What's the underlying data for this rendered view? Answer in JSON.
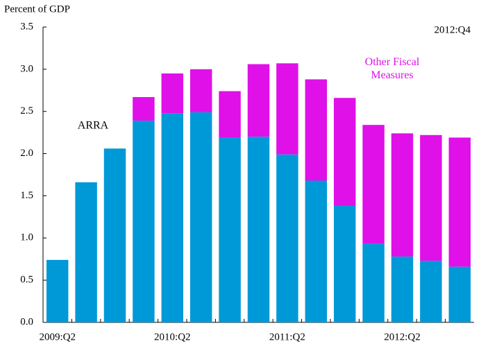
{
  "chart_data": {
    "type": "stacked_bar",
    "y_label": "Percent of GDP",
    "annotation": "2012:Q4",
    "categories": [
      "2009:Q2",
      null,
      null,
      null,
      "2010:Q2",
      null,
      null,
      null,
      "2011:Q2",
      null,
      null,
      null,
      "2012:Q2",
      null,
      null
    ],
    "series": [
      {
        "name": "ARRA",
        "color": "#0099d8",
        "values": [
          0.74,
          1.66,
          2.06,
          2.39,
          2.48,
          2.49,
          2.19,
          2.2,
          1.99,
          1.68,
          1.38,
          0.93,
          0.78,
          0.73,
          0.66
        ]
      },
      {
        "name": "Other Fiscal Measures",
        "color": "#e010e8",
        "values": [
          0,
          0,
          0,
          0.28,
          0.47,
          0.51,
          0.55,
          0.86,
          1.08,
          1.2,
          1.28,
          1.41,
          1.46,
          1.49,
          1.53
        ]
      }
    ],
    "ylim": [
      0,
      3.5
    ],
    "yticks": [
      {
        "value": 0,
        "label": "0.0"
      },
      0.5,
      {
        "value": 1,
        "label": "1.0"
      },
      1.5,
      {
        "value": 2,
        "label": "2.0"
      },
      2.5,
      {
        "value": 3,
        "label": "3.0"
      },
      3.5
    ],
    "grid": false
  }
}
